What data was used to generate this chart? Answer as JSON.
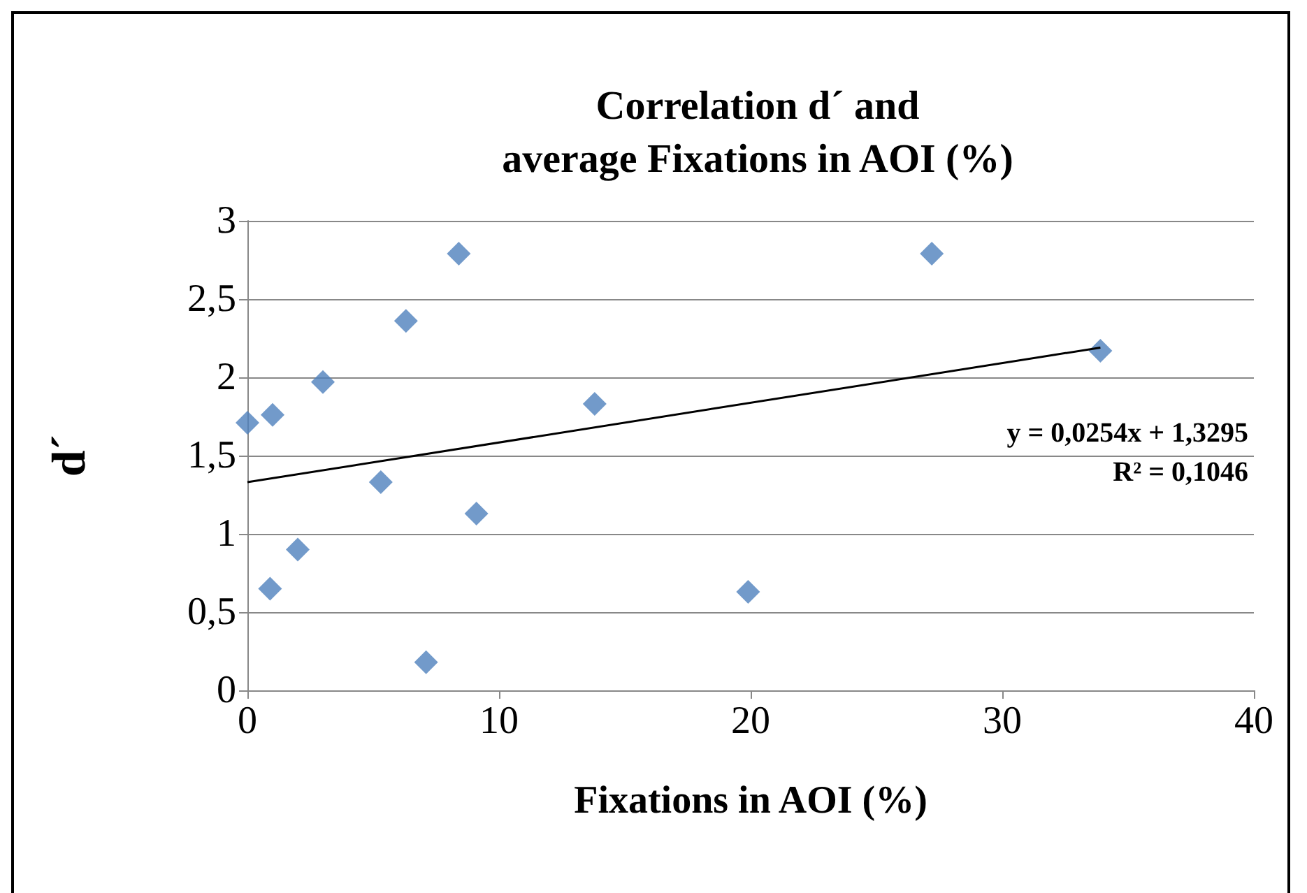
{
  "chart_data": {
    "type": "scatter",
    "title": "Correlation d´ and\naverage Fixations in AOI (%)",
    "xlabel": "Fixations in AOI (%)",
    "ylabel": "d´",
    "series": [
      {
        "color": "#4f81bd",
        "marker": "diamond",
        "x": [
          0,
          1.0,
          0.9,
          2.0,
          3.0,
          5.3,
          6.3,
          7.1,
          8.4,
          9.1,
          13.8,
          19.9,
          27.2,
          33.9
        ],
        "values": [
          1.71,
          1.76,
          0.65,
          0.9,
          1.97,
          1.33,
          2.36,
          0.18,
          2.79,
          1.13,
          1.83,
          0.63,
          2.79,
          2.17
        ]
      },
      {
        "type": "line",
        "color": "#000000",
        "marker": "none",
        "line_style": "solid",
        "x": [
          0,
          33.9
        ],
        "values": [
          1.33,
          2.19
        ]
      }
    ],
    "xlim": [
      0,
      40
    ],
    "xticks": [
      0,
      10,
      20,
      30,
      40
    ],
    "ylim": [
      0,
      3
    ],
    "yticks": [
      0,
      {
        "value": 0.5,
        "label": "0,5"
      },
      1,
      {
        "value": 1.5,
        "label": "1,5"
      },
      2,
      {
        "value": 2.5,
        "label": "2,5"
      },
      3
    ],
    "grid": "y",
    "annotations": [
      "y = 0,0254x + 1,3295",
      "R² = 0,1046"
    ]
  }
}
